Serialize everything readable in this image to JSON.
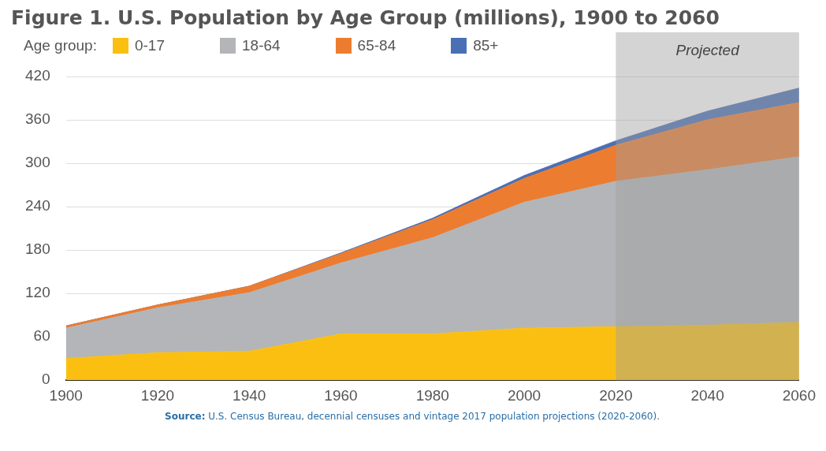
{
  "chart_data": {
    "type": "area",
    "title": "Figure 1. U.S. Population by Age Group (millions), 1900 to 2060",
    "legend_title": "Age group:",
    "stacked": true,
    "x": [
      1900,
      1920,
      1940,
      1960,
      1980,
      2000,
      2020,
      2040,
      2060
    ],
    "series": [
      {
        "name": "0-17",
        "color": "#fbbf12",
        "values": [
          30,
          38,
          40,
          64,
          64,
          72,
          74,
          76,
          80
        ]
      },
      {
        "name": "18-64",
        "color": "#b3b5b8",
        "values": [
          42,
          62,
          81,
          98,
          133,
          174,
          201,
          215,
          229
        ]
      },
      {
        "name": "65-84",
        "color": "#ec7c30",
        "values": [
          3,
          4,
          9,
          13,
          25,
          33,
          50,
          69,
          75
        ]
      },
      {
        "name": "85+",
        "color": "#4a6fb5",
        "values": [
          0,
          0,
          0,
          1,
          2,
          4,
          6,
          12,
          20
        ]
      }
    ],
    "xlim": [
      1900,
      2060
    ],
    "xticks": [
      1900,
      1920,
      1940,
      1960,
      1980,
      2000,
      2020,
      2040,
      2060
    ],
    "ylim": [
      0,
      420
    ],
    "yticks": [
      0,
      60,
      120,
      180,
      240,
      300,
      360,
      420
    ],
    "grid": "y",
    "legend": "top left",
    "bands": [
      {
        "axis": "x",
        "from": 2020,
        "to": 2060,
        "label": "Projected",
        "color": "#a0a0a0"
      }
    ],
    "annotations": [
      "Source: U.S. Census Bureau, decennial censuses and vintage 2017 population projections (2020-2060)."
    ]
  }
}
